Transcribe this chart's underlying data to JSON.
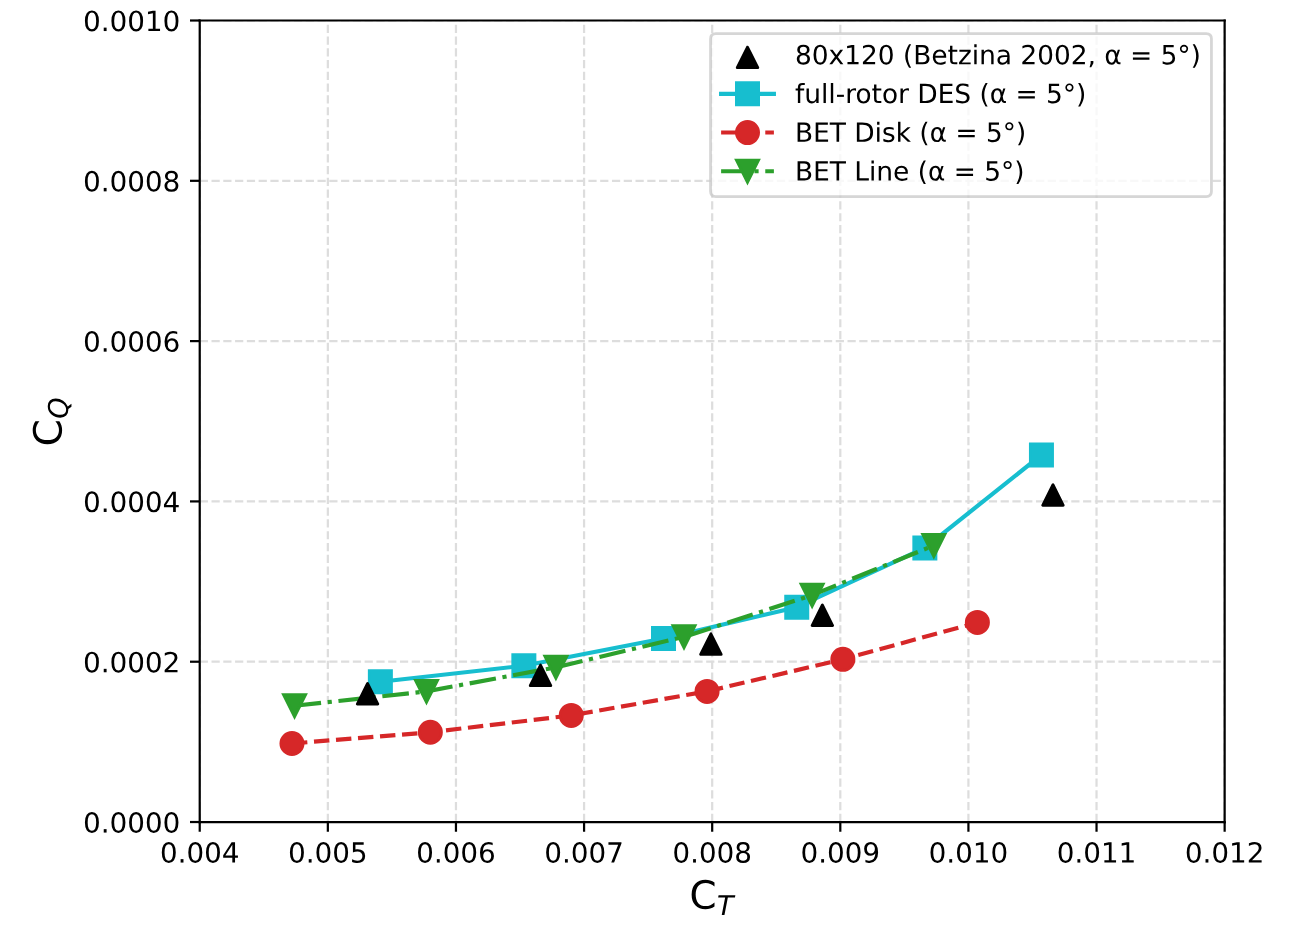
{
  "chart_data": {
    "type": "line",
    "xlabel": "C$_{T}$",
    "ylabel": "C$_{Q}$",
    "xlim": [
      0.004,
      0.012
    ],
    "xticks": [
      {
        "value": 0.004,
        "label": "0.004"
      },
      {
        "value": 0.005,
        "label": "0.005"
      },
      {
        "value": 0.006,
        "label": "0.006"
      },
      {
        "value": 0.007,
        "label": "0.007"
      },
      {
        "value": 0.008,
        "label": "0.008"
      },
      {
        "value": 0.009,
        "label": "0.009"
      },
      {
        "value": 0.01,
        "label": "0.010"
      },
      {
        "value": 0.011,
        "label": "0.011"
      },
      {
        "value": 0.012,
        "label": "0.012"
      }
    ],
    "ylim": [
      0,
      0.001
    ],
    "yticks": [
      {
        "value": 0,
        "label": "0.0000"
      },
      {
        "value": 0.0002,
        "label": "0.0002"
      },
      {
        "value": 0.0004,
        "label": "0.0004"
      },
      {
        "value": 0.0006,
        "label": "0.0006"
      },
      {
        "value": 0.0008,
        "label": "0.0008"
      },
      {
        "value": 0.001,
        "label": "0.0010"
      }
    ],
    "grid": true,
    "legend": "top right",
    "series": [
      {
        "name": "80x120 (Betzina 2002, α = 5°)",
        "type": "scatter",
        "color": "#000000",
        "marker": "triangle",
        "x": [
          0.00531,
          0.00666,
          0.00799,
          0.00886,
          0.01066
        ],
        "values": [
          0.00016,
          0.000183,
          0.000222,
          0.000258,
          0.000408
        ]
      },
      {
        "name": "full-rotor DES (α = 5°)",
        "color": "#17becf",
        "marker": "square",
        "line_style": "solid",
        "x": [
          0.00541,
          0.00653,
          0.00762,
          0.00866,
          0.00966,
          0.01057
        ],
        "values": [
          0.000175,
          0.000195,
          0.000229,
          0.000268,
          0.000342,
          0.000458
        ]
      },
      {
        "name": "BET Disk (α = 5°)",
        "color": "#d62728",
        "marker": "circle",
        "line_style": "dashed",
        "x": [
          0.00472,
          0.0058,
          0.0069,
          0.00796,
          0.00902,
          0.01007
        ],
        "values": [
          9.8e-05,
          0.000112,
          0.000133,
          0.000163,
          0.000203,
          0.000249
        ]
      },
      {
        "name": "BET Line (α = 5°)",
        "color": "#2ca02c",
        "marker": "triangle_down",
        "line_style": "dashdot",
        "x": [
          0.00474,
          0.00577,
          0.00678,
          0.00778,
          0.00878,
          0.00973
        ],
        "values": [
          0.000145,
          0.000163,
          0.000193,
          0.000231,
          0.000283,
          0.000345
        ]
      }
    ]
  }
}
